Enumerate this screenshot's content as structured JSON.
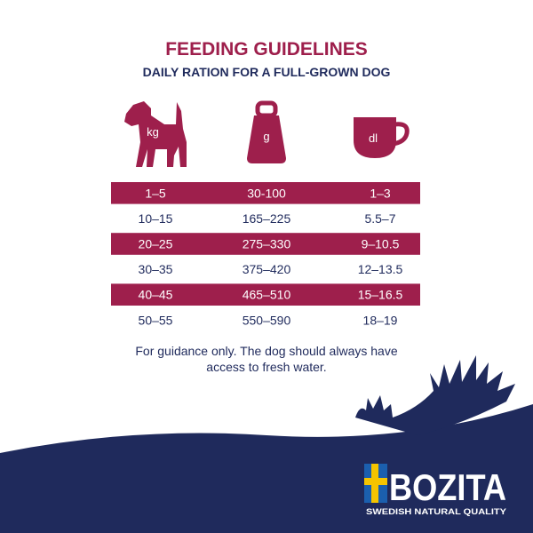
{
  "header": {
    "title": "FEEDING GUIDELINES",
    "subtitle": "DAILY RATION FOR A FULL-GROWN DOG"
  },
  "icons": {
    "weight_label": "kg",
    "food_label": "g",
    "volume_label": "dl"
  },
  "table": {
    "rows": [
      [
        "1–5",
        "30-100",
        "1–3"
      ],
      [
        "10–15",
        "165–225",
        "5.5–7"
      ],
      [
        "20–25",
        "275–330",
        "9–10.5"
      ],
      [
        "30–35",
        "375–420",
        "12–13.5"
      ],
      [
        "40–45",
        "465–510",
        "15–16.5"
      ],
      [
        "50–55",
        "550–590",
        "18–19"
      ]
    ]
  },
  "note": "For guidance only. The dog should always have access to fresh water.",
  "brand": {
    "name": "BOZITA",
    "tagline": "SWEDISH NATURAL QUALITY"
  }
}
